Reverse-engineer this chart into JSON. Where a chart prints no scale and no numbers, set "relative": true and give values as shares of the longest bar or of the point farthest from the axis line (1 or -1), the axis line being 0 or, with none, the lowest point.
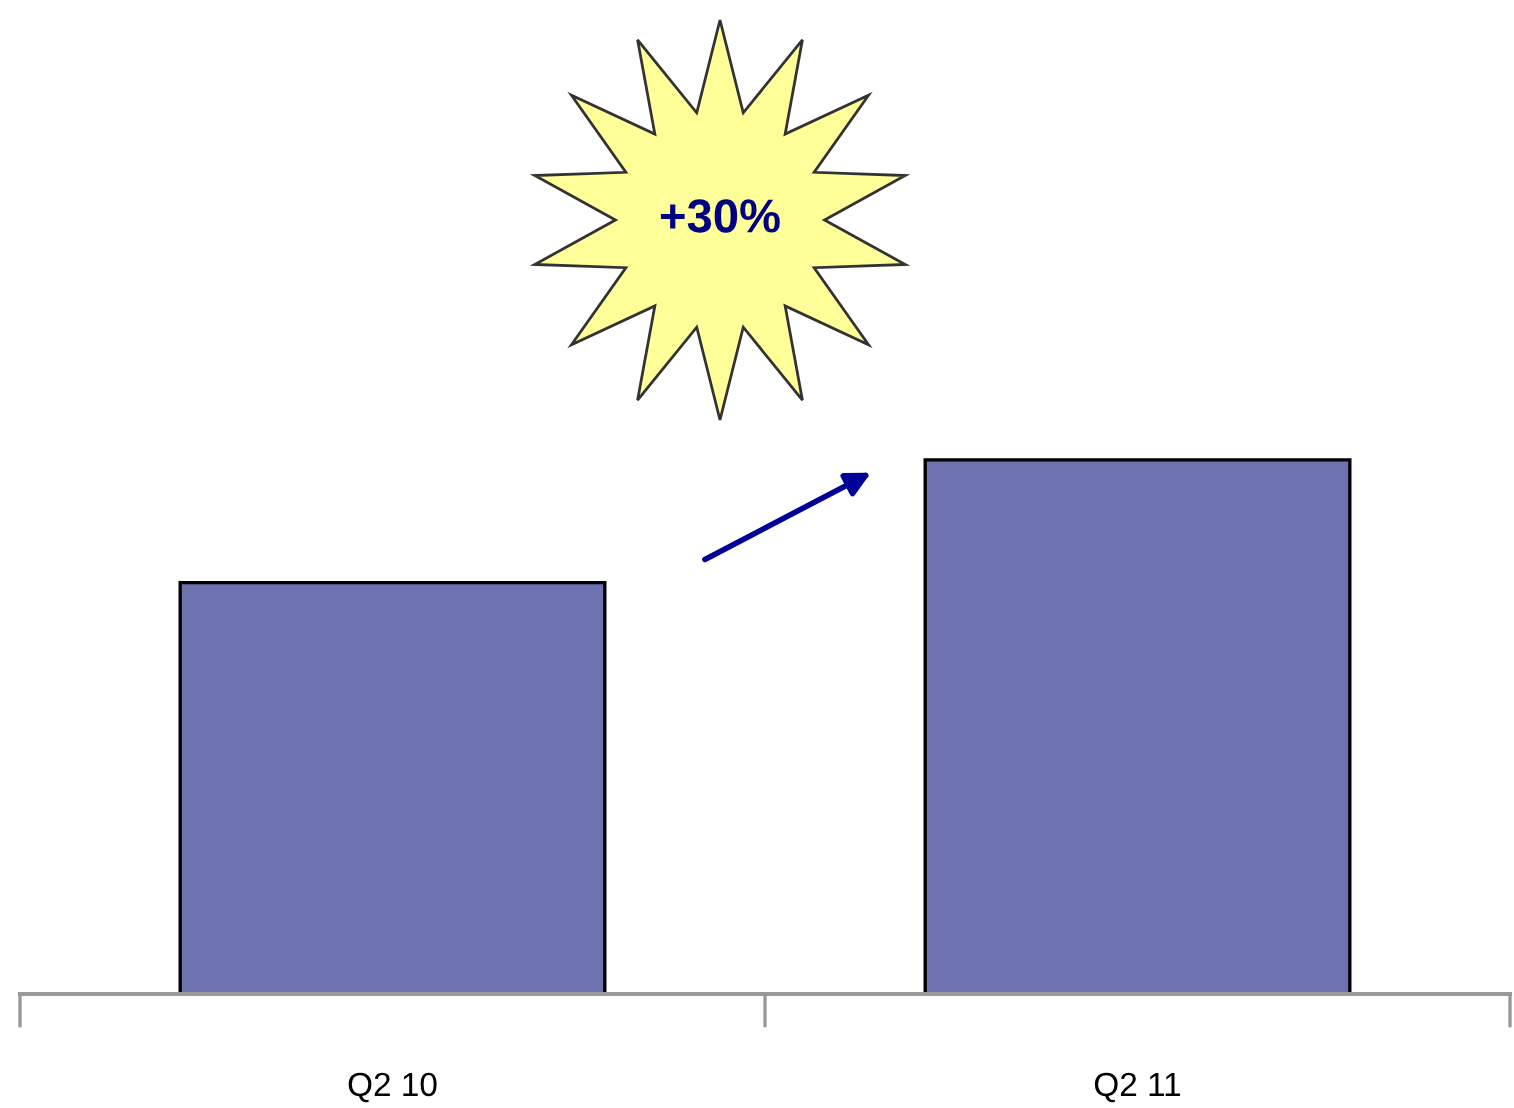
{
  "chart_data": {
    "type": "bar",
    "relative": true,
    "categories": [
      "Q2 10",
      "Q2 11"
    ],
    "values": [
      0.77,
      1
    ],
    "color": "#6f72b0",
    "annotations": [
      "+30%"
    ],
    "grid": false,
    "legend": false
  }
}
